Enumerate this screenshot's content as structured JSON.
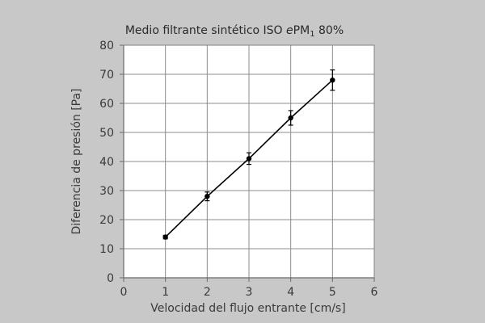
{
  "chart_data": {
    "type": "line",
    "title": {
      "before": "Medio filtrante sintético ISO ",
      "italic": "e",
      "pm": "PM",
      "sub": "1",
      "after": " 80%"
    },
    "xlabel": "Velocidad del flujo entrante [cm/s]",
    "ylabel": "Diferencia de presión [Pa]",
    "xlim": [
      0,
      6
    ],
    "ylim": [
      0,
      80
    ],
    "xticks": [
      0,
      1,
      2,
      3,
      4,
      5,
      6
    ],
    "yticks": [
      0,
      10,
      20,
      30,
      40,
      50,
      60,
      70,
      80
    ],
    "grid": true,
    "series": [
      {
        "x": [
          1,
          2,
          3,
          4,
          5
        ],
        "y": [
          14,
          28,
          41,
          55,
          68
        ],
        "err": [
          0.6,
          1.5,
          2.0,
          2.5,
          3.5
        ],
        "color": "#000000",
        "marker": "circle"
      }
    ]
  }
}
